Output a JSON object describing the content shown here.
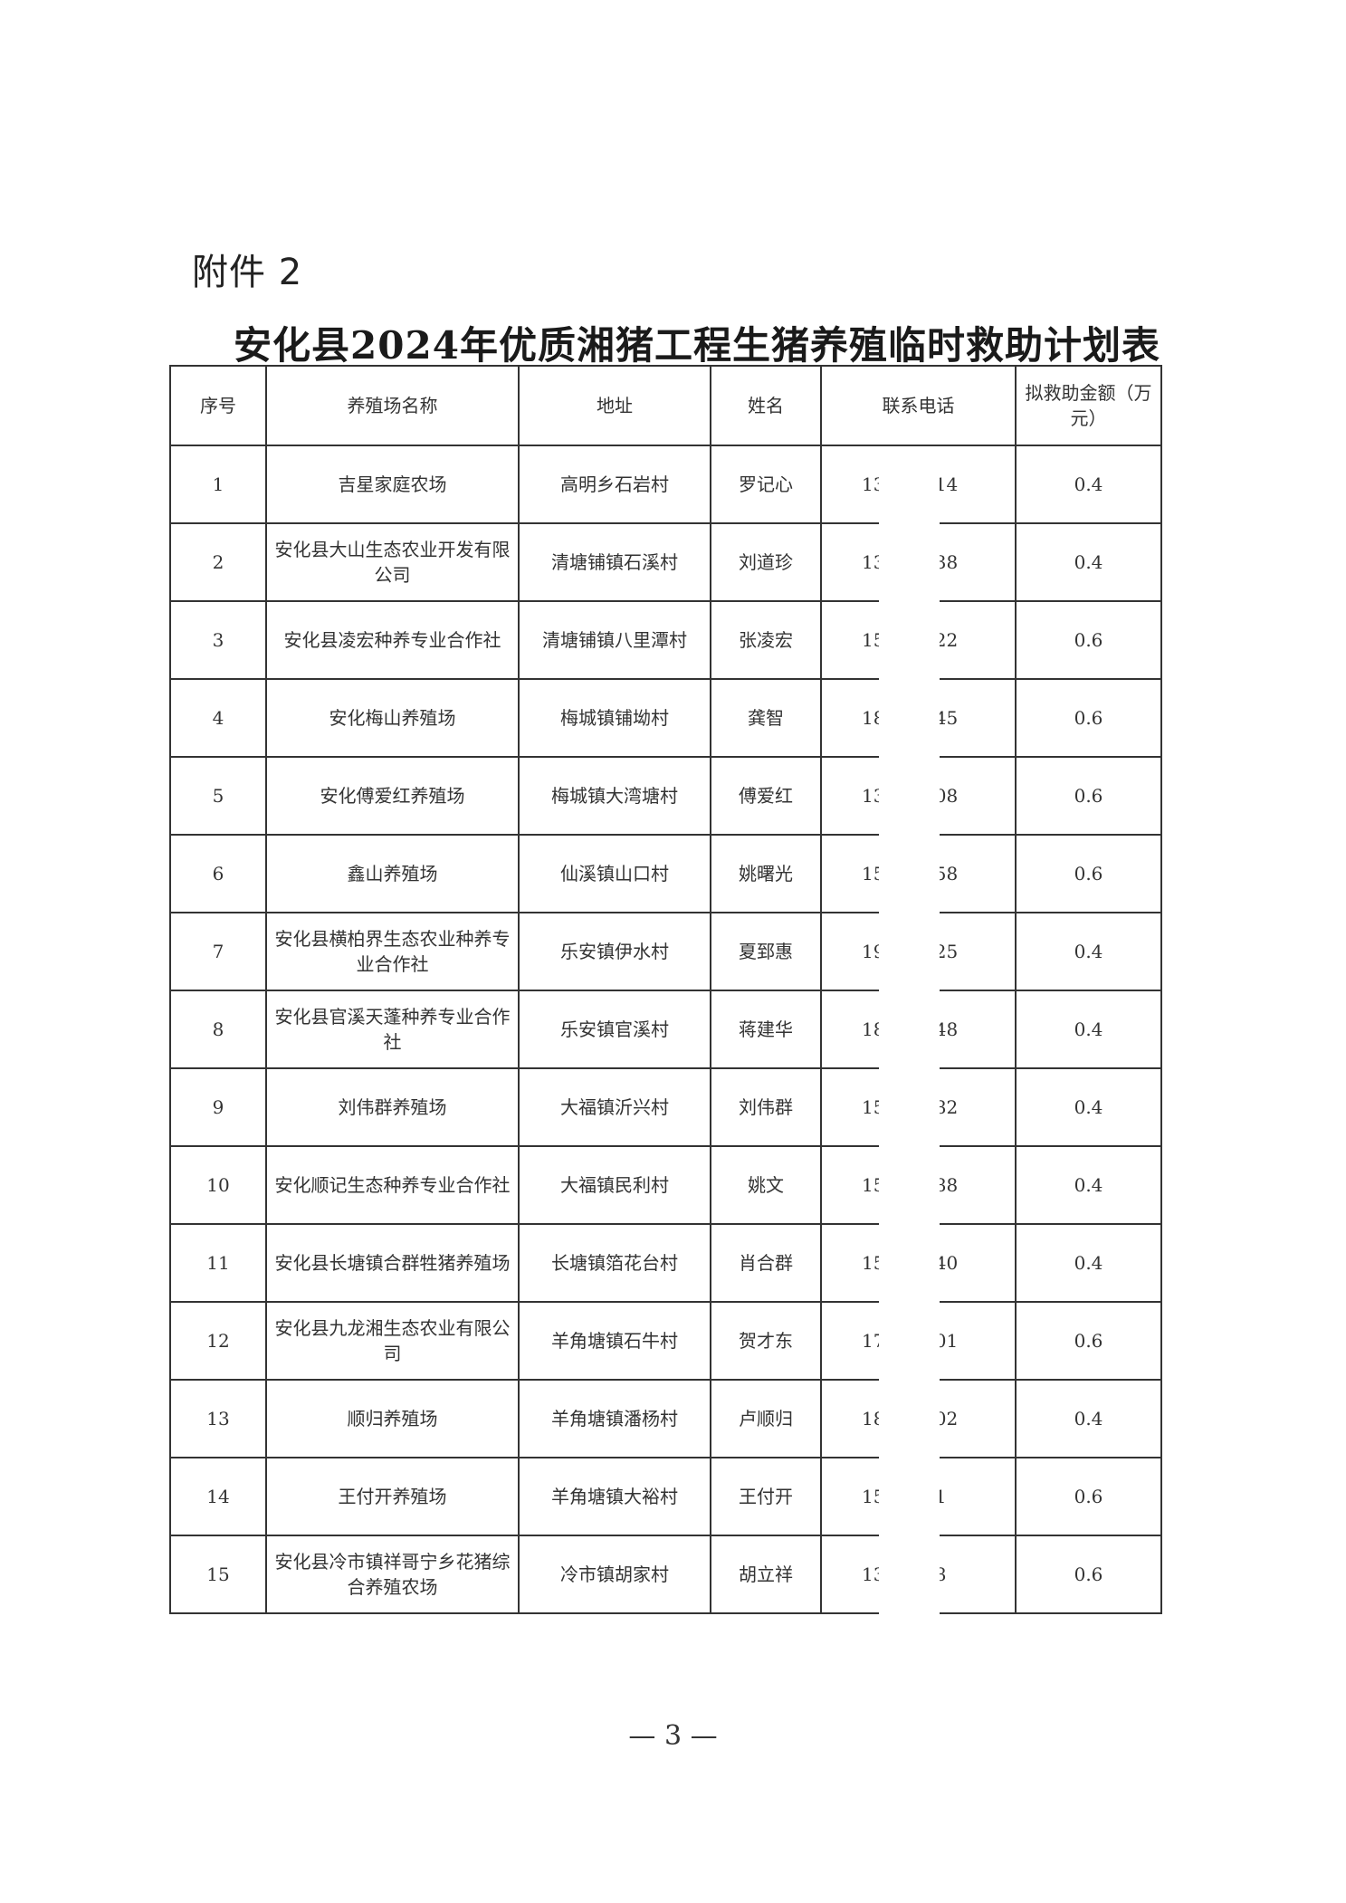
{
  "attachment_label": "附件 2",
  "title": "安化县2024年优质湘猪工程生猪养殖临时救助计划表",
  "table": {
    "headers": [
      "序号",
      "养殖场名称",
      "地址",
      "姓名",
      "联系电话",
      "拟救助金额（万元）"
    ],
    "rows": [
      {
        "no": "1",
        "farm": "吉星家庭农场",
        "address": "高明乡石岩村",
        "name": "罗记心",
        "phone_prefix": "13",
        "phone_suffix": "914",
        "amount": "0.4"
      },
      {
        "no": "2",
        "farm": "安化县大山生态农业开发有限公司",
        "address": "清塘铺镇石溪村",
        "name": "刘道珍",
        "phone_prefix": "13",
        "phone_suffix": "538",
        "amount": "0.4"
      },
      {
        "no": "3",
        "farm": "安化县凌宏种养专业合作社",
        "address": "清塘铺镇八里潭村",
        "name": "张凌宏",
        "phone_prefix": "15",
        "phone_suffix": "122",
        "amount": "0.6"
      },
      {
        "no": "4",
        "farm": "安化梅山养殖场",
        "address": "梅城镇铺坳村",
        "name": "龚智",
        "phone_prefix": "18",
        "phone_suffix": "645",
        "amount": "0.6"
      },
      {
        "no": "5",
        "farm": "安化傅爱红养殖场",
        "address": "梅城镇大湾塘村",
        "name": "傅爱红",
        "phone_prefix": "13",
        "phone_suffix": "008",
        "amount": "0.6"
      },
      {
        "no": "6",
        "farm": "鑫山养殖场",
        "address": "仙溪镇山口村",
        "name": "姚曙光",
        "phone_prefix": "15",
        "phone_suffix": "758",
        "amount": "0.6"
      },
      {
        "no": "7",
        "farm": "安化县横柏界生态农业种养专业合作社",
        "address": "乐安镇伊水村",
        "name": "夏郅惠",
        "phone_prefix": "19",
        "phone_suffix": "625",
        "amount": "0.4"
      },
      {
        "no": "8",
        "farm": "安化县官溪天蓬种养专业合作社",
        "address": "乐安镇官溪村",
        "name": "蒋建华",
        "phone_prefix": "18",
        "phone_suffix": "648",
        "amount": "0.4"
      },
      {
        "no": "9",
        "farm": "刘伟群养殖场",
        "address": "大福镇沂兴村",
        "name": "刘伟群",
        "phone_prefix": "15",
        "phone_suffix": "782",
        "amount": "0.4"
      },
      {
        "no": "10",
        "farm": "安化顺记生态种养专业合作社",
        "address": "大福镇民利村",
        "name": "姚文",
        "phone_prefix": "15",
        "phone_suffix": "388",
        "amount": "0.4"
      },
      {
        "no": "11",
        "farm": "安化县长塘镇合群牲猪养殖场",
        "address": "长塘镇箔花台村",
        "name": "肖合群",
        "phone_prefix": "15",
        "phone_suffix": "140",
        "amount": "0.4"
      },
      {
        "no": "12",
        "farm": "安化县九龙湘生态农业有限公司",
        "address": "羊角塘镇石牛村",
        "name": "贺才东",
        "phone_prefix": "17",
        "phone_suffix": "001",
        "amount": "0.6"
      },
      {
        "no": "13",
        "farm": "顺归养殖场",
        "address": "羊角塘镇潘杨村",
        "name": "卢顺归",
        "phone_prefix": "18",
        "phone_suffix": "302",
        "amount": "0.4"
      },
      {
        "no": "14",
        "farm": "王付开养殖场",
        "address": "羊角塘镇大裕村",
        "name": "王付开",
        "phone_prefix": "15",
        "phone_suffix": "81",
        "amount": "0.6"
      },
      {
        "no": "15",
        "farm": "安化县冷市镇祥哥宁乡花猪综合养殖农场",
        "address": "冷市镇胡家村",
        "name": "胡立祥",
        "phone_prefix": "138",
        "phone_suffix": "38",
        "amount": "0.6"
      }
    ]
  },
  "page_number": "— 3 —"
}
